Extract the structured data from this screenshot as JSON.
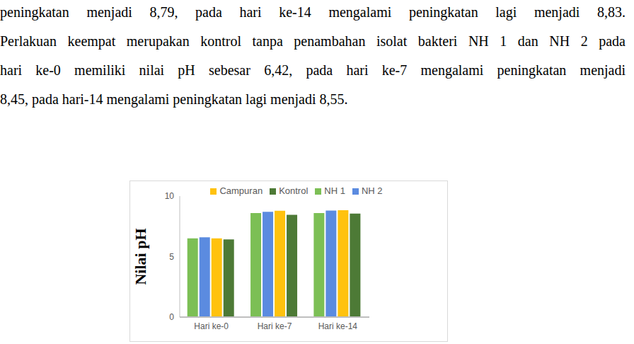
{
  "page": {
    "lines": [
      "peningkatan menjadi 8,79, pada hari ke-14 mengalami peningkatan lagi menjadi 8,83.",
      "Perlakuan keempat merupakan kontrol tanpa penambahan isolat bakteri NH 1 dan NH 2 pada",
      "hari ke-0 memiliki nilai pH sebesar 6,42, pada hari ke-7 mengalami peningkatan menjadi",
      "8,45, pada hari-14 mengalami peningkatan lagi menjadi 8,55."
    ]
  },
  "chart_data": {
    "type": "bar",
    "y_label": "Nilai pH",
    "categories": [
      "Hari ke-0",
      "Hari ke-7",
      "Hari ke-14"
    ],
    "series": [
      {
        "name": "NH 1",
        "color": "#7cbf55",
        "values": [
          6.5,
          8.6,
          8.6
        ]
      },
      {
        "name": "NH 2",
        "color": "#5b8be0",
        "values": [
          6.6,
          8.7,
          8.8
        ]
      },
      {
        "name": "Campuran",
        "color": "#ffc20e",
        "values": [
          6.5,
          8.79,
          8.83
        ]
      },
      {
        "name": "Kontrol",
        "color": "#4d7a36",
        "values": [
          6.42,
          8.45,
          8.55
        ]
      }
    ],
    "ylim": [
      0,
      10
    ],
    "yticks": [
      0,
      5,
      10
    ],
    "grid": false,
    "legend": "top"
  }
}
